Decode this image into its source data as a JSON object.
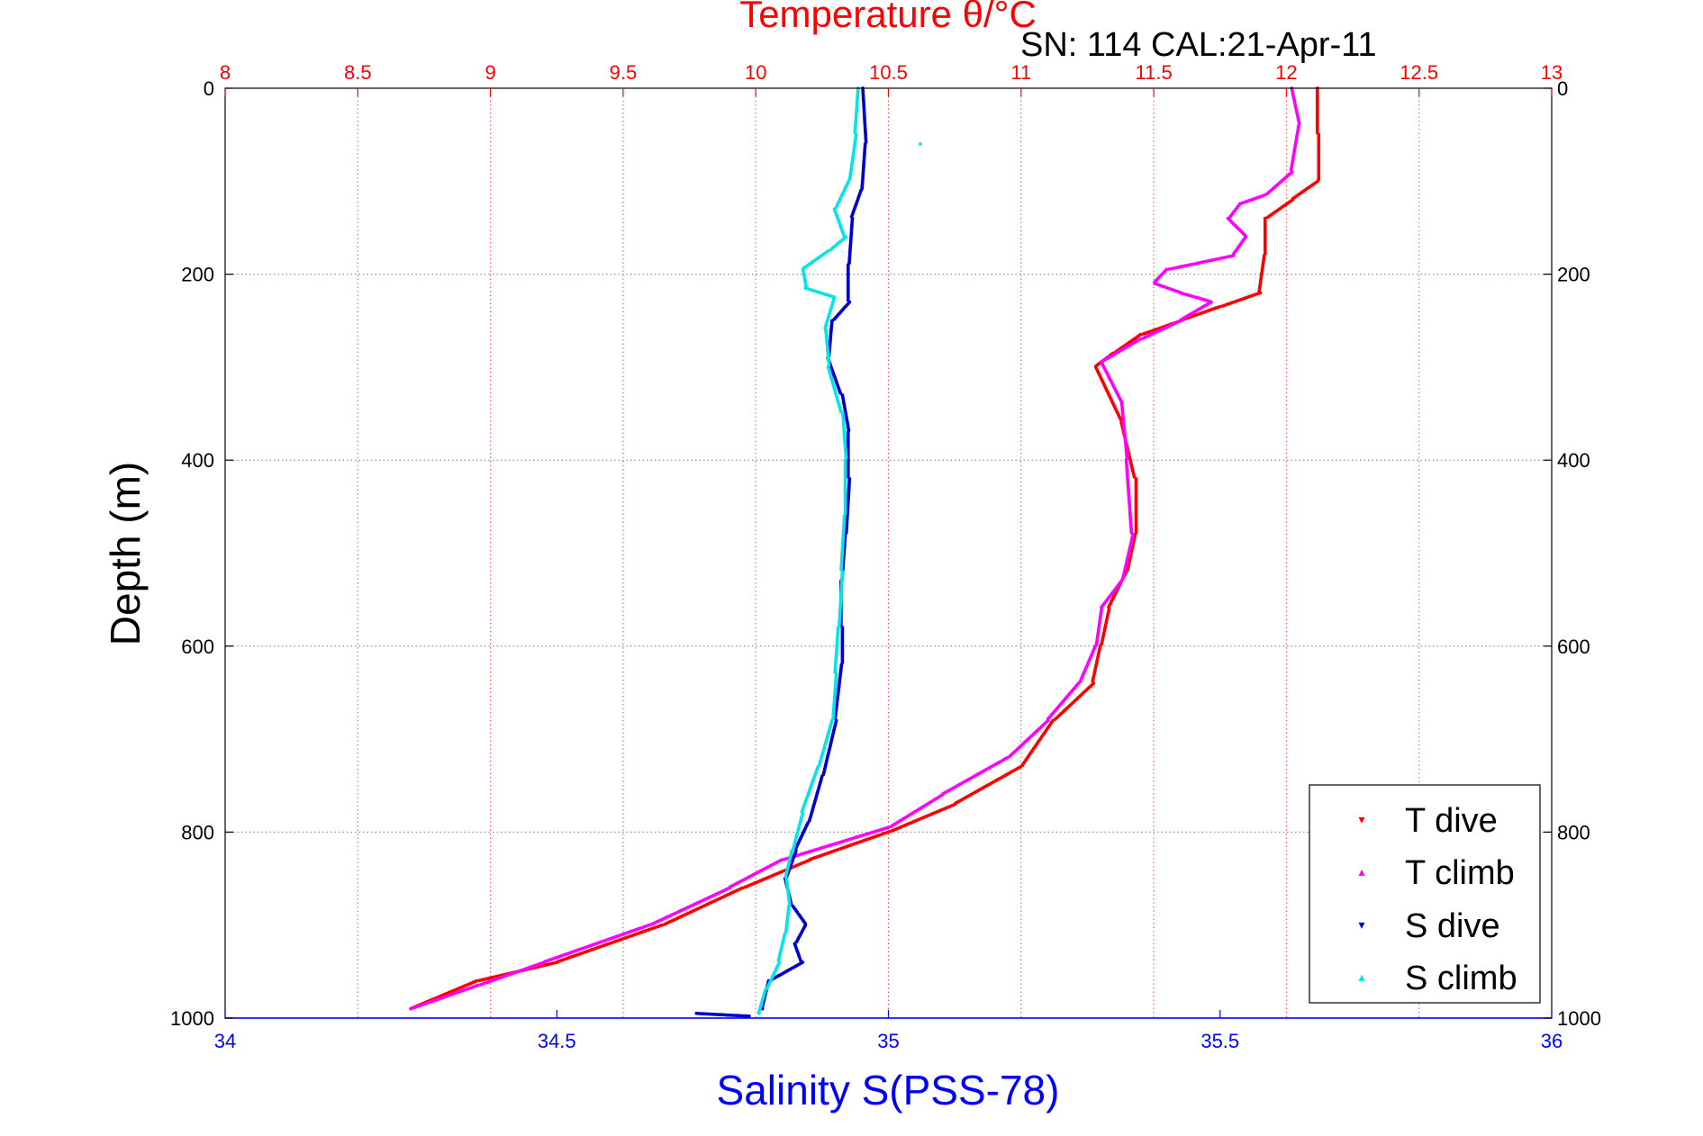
{
  "chart_data": {
    "type": "scatter",
    "title": "SN: 114  CAL:21-Apr-11",
    "top_axis": {
      "label": "Temperature θ/°C",
      "ticks": [
        "8",
        "8.5",
        "9",
        "9.5",
        "10",
        "10.5",
        "11",
        "11.5",
        "12",
        "12.5",
        "13"
      ],
      "range": [
        8,
        13
      ],
      "grid": true,
      "color": "#ff0000"
    },
    "bottom_axis": {
      "label": "Salinity S(PSS-78)",
      "ticks": [
        "34",
        "34.5",
        "35",
        "35.5",
        "36"
      ],
      "range": [
        34,
        36
      ],
      "color": "#0000ff"
    },
    "y_axis": {
      "label": "Depth (m)",
      "ticks": [
        "0",
        "200",
        "400",
        "600",
        "800",
        "1000"
      ],
      "range": [
        0,
        1000
      ],
      "reversed": true,
      "grid": true
    },
    "legend": {
      "position": "bottom-right",
      "entries": [
        {
          "label": "T dive",
          "color": "#ff0000",
          "marker": "▾"
        },
        {
          "label": "T climb",
          "color": "#ff00ff",
          "marker": "▴"
        },
        {
          "label": "S dive",
          "color": "#0000cc",
          "marker": "▾"
        },
        {
          "label": "S climb",
          "color": "#00e5e5",
          "marker": "▴"
        }
      ]
    },
    "series": [
      {
        "name": "T dive",
        "axis": "temperature",
        "color": "#ff0000",
        "points": [
          [
            12.12,
            0
          ],
          [
            12.12,
            50
          ],
          [
            12.12,
            100
          ],
          [
            12.02,
            120
          ],
          [
            11.92,
            140
          ],
          [
            11.92,
            180
          ],
          [
            11.9,
            220
          ],
          [
            11.75,
            235
          ],
          [
            11.6,
            250
          ],
          [
            11.45,
            265
          ],
          [
            11.35,
            285
          ],
          [
            11.28,
            300
          ],
          [
            11.38,
            360
          ],
          [
            11.43,
            420
          ],
          [
            11.43,
            480
          ],
          [
            11.4,
            520
          ],
          [
            11.33,
            560
          ],
          [
            11.3,
            600
          ],
          [
            11.27,
            640
          ],
          [
            11.12,
            680
          ],
          [
            11.0,
            730
          ],
          [
            10.75,
            770
          ],
          [
            10.5,
            800
          ],
          [
            10.2,
            830
          ],
          [
            9.95,
            860
          ],
          [
            9.65,
            900
          ],
          [
            9.25,
            940
          ],
          [
            8.95,
            960
          ],
          [
            8.7,
            990
          ]
        ]
      },
      {
        "name": "T climb",
        "axis": "temperature",
        "color": "#ff00ff",
        "points": [
          [
            12.02,
            0
          ],
          [
            12.05,
            40
          ],
          [
            12.02,
            90
          ],
          [
            11.92,
            115
          ],
          [
            11.82,
            125
          ],
          [
            11.78,
            140
          ],
          [
            11.85,
            160
          ],
          [
            11.8,
            180
          ],
          [
            11.55,
            195
          ],
          [
            11.5,
            210
          ],
          [
            11.6,
            220
          ],
          [
            11.72,
            230
          ],
          [
            11.6,
            250
          ],
          [
            11.45,
            270
          ],
          [
            11.3,
            295
          ],
          [
            11.38,
            340
          ],
          [
            11.4,
            400
          ],
          [
            11.42,
            480
          ],
          [
            11.38,
            530
          ],
          [
            11.3,
            560
          ],
          [
            11.28,
            600
          ],
          [
            11.22,
            640
          ],
          [
            11.1,
            680
          ],
          [
            10.95,
            720
          ],
          [
            10.7,
            760
          ],
          [
            10.5,
            795
          ],
          [
            10.1,
            830
          ],
          [
            9.9,
            860
          ],
          [
            9.6,
            900
          ],
          [
            9.2,
            940
          ],
          [
            8.95,
            965
          ],
          [
            8.7,
            990
          ]
        ]
      },
      {
        "name": "S dive",
        "axis": "salinity",
        "color": "#0000cc",
        "points": [
          [
            34.96,
            0
          ],
          [
            34.965,
            60
          ],
          [
            34.96,
            110
          ],
          [
            34.945,
            140
          ],
          [
            34.94,
            190
          ],
          [
            34.94,
            230
          ],
          [
            34.915,
            250
          ],
          [
            34.91,
            290
          ],
          [
            34.93,
            330
          ],
          [
            34.94,
            370
          ],
          [
            34.94,
            420
          ],
          [
            34.935,
            480
          ],
          [
            34.93,
            530
          ],
          [
            34.93,
            580
          ],
          [
            34.93,
            620
          ],
          [
            34.92,
            680
          ],
          [
            34.9,
            740
          ],
          [
            34.88,
            790
          ],
          [
            34.86,
            820
          ],
          [
            34.845,
            850
          ],
          [
            34.855,
            880
          ],
          [
            34.875,
            900
          ],
          [
            34.86,
            920
          ],
          [
            34.87,
            940
          ],
          [
            34.82,
            960
          ],
          [
            34.81,
            990
          ]
        ]
      },
      {
        "name": "S climb",
        "axis": "salinity",
        "color": "#00e5e5",
        "points": [
          [
            34.955,
            0
          ],
          [
            34.95,
            50
          ],
          [
            34.94,
            100
          ],
          [
            34.92,
            130
          ],
          [
            34.935,
            160
          ],
          [
            34.91,
            175
          ],
          [
            34.87,
            195
          ],
          [
            34.875,
            215
          ],
          [
            34.92,
            225
          ],
          [
            34.905,
            260
          ],
          [
            34.91,
            300
          ],
          [
            34.93,
            350
          ],
          [
            34.935,
            400
          ],
          [
            34.935,
            460
          ],
          [
            34.93,
            520
          ],
          [
            34.925,
            580
          ],
          [
            34.92,
            630
          ],
          [
            34.915,
            680
          ],
          [
            34.895,
            730
          ],
          [
            34.87,
            780
          ],
          [
            34.855,
            820
          ],
          [
            34.845,
            850
          ],
          [
            34.85,
            880
          ],
          [
            34.845,
            910
          ],
          [
            34.835,
            940
          ],
          [
            34.815,
            970
          ],
          [
            34.805,
            995
          ]
        ]
      },
      {
        "name": "",
        "axis": "salinity",
        "color": "#0000cc",
        "points": [
          [
            34.71,
            995
          ],
          [
            34.79,
            998
          ]
        ]
      },
      {
        "name": "",
        "axis": "temperature",
        "color": "#00e5e5",
        "points": [
          [
            10.62,
            60
          ]
        ]
      }
    ]
  }
}
